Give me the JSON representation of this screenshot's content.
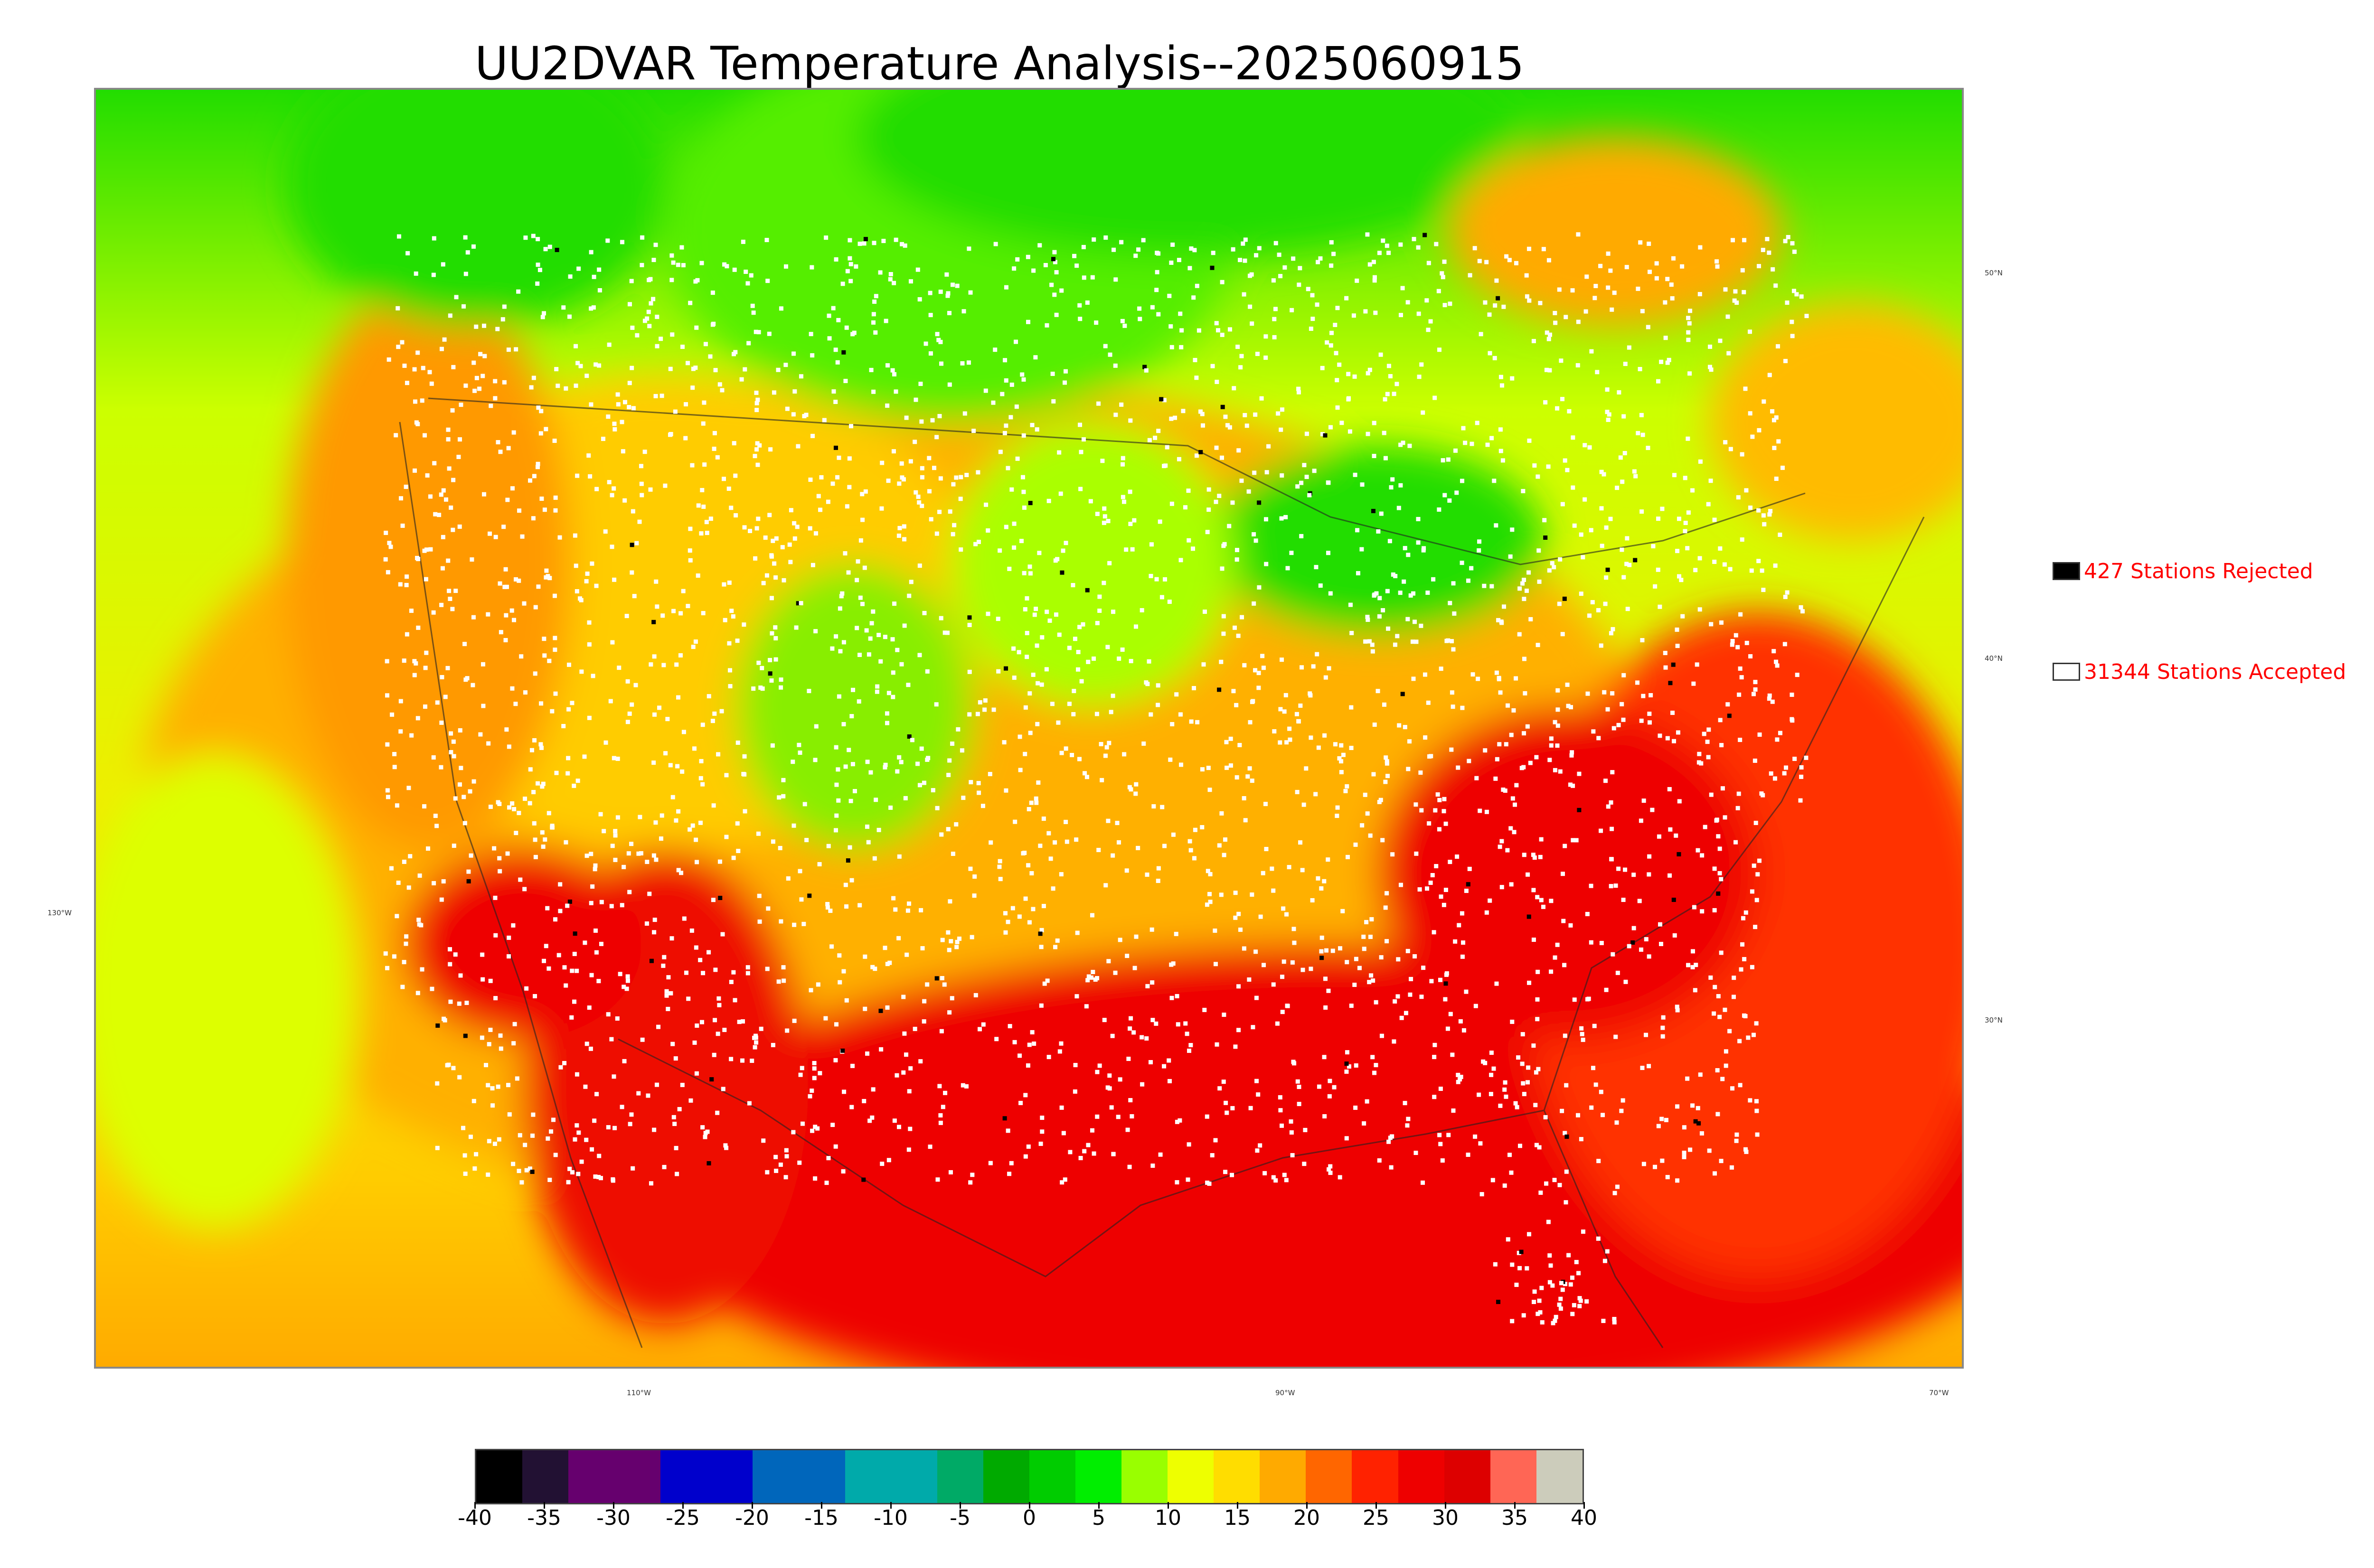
{
  "title": "UU2DVAR Temperature Analysis--2025060915",
  "legend": {
    "rejected": {
      "label": "427 Stations Rejected",
      "swatch_color": "#000000"
    },
    "accepted": {
      "label": "31344 Stations Accepted",
      "swatch_color": "#ffffff"
    }
  },
  "graticule": {
    "lat_labels": [
      "50°N",
      "40°N",
      "30°N"
    ],
    "lon_labels": [
      "130°W",
      "110°W",
      "90°W",
      "70°W"
    ]
  },
  "colorbar": {
    "ticks": [
      "-40",
      "-35",
      "-30",
      "-25",
      "-20",
      "-15",
      "-10",
      "-5",
      "0",
      "5",
      "10",
      "15",
      "20",
      "25",
      "30",
      "35",
      "40"
    ],
    "range": [
      -40,
      40
    ],
    "colors": [
      "#000000",
      "#221133",
      "#66006e",
      "#66006e",
      "#0000cc",
      "#0000cc",
      "#0066bb",
      "#0066bb",
      "#00aaaa",
      "#00aaaa",
      "#00aa66",
      "#00aa00",
      "#00cc00",
      "#00ee00",
      "#99ff00",
      "#eeff00",
      "#ffdd00",
      "#ffaa00",
      "#ff6600",
      "#ff2200",
      "#ee0000",
      "#dd0000",
      "#ff6655",
      "#ccccbb"
    ]
  },
  "colors": {
    "hot": "#ee0000",
    "warm": "#ffaa00",
    "mild": "#ffee00",
    "cool": "#55ee00",
    "cold": "#00dd00",
    "station_accepted": "#ffffff",
    "station_rejected": "#000000"
  }
}
